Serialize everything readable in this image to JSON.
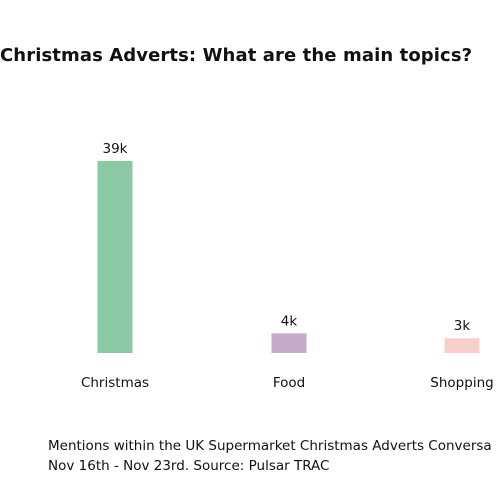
{
  "title": "Christmas Adverts: What are the main topics?",
  "caption": {
    "line1": "Mentions within the UK Supermarket Christmas Adverts Conversa",
    "line2": "Nov 16th - Nov 23rd. Source: Pulsar TRAC"
  },
  "chart_data": {
    "type": "bar",
    "title": "Christmas Adverts: What are the main topics?",
    "categories": [
      "Christmas",
      "Food",
      "Shopping"
    ],
    "values": [
      39000,
      4000,
      3000
    ],
    "value_labels": [
      "39k",
      "4k",
      "3k"
    ],
    "colors": [
      "#8ac9a3",
      "#c7aac9",
      "#f8d0c9"
    ],
    "xlabel": "",
    "ylabel": "",
    "ylim": [
      0,
      39000
    ],
    "grid": false,
    "legend": "none"
  }
}
